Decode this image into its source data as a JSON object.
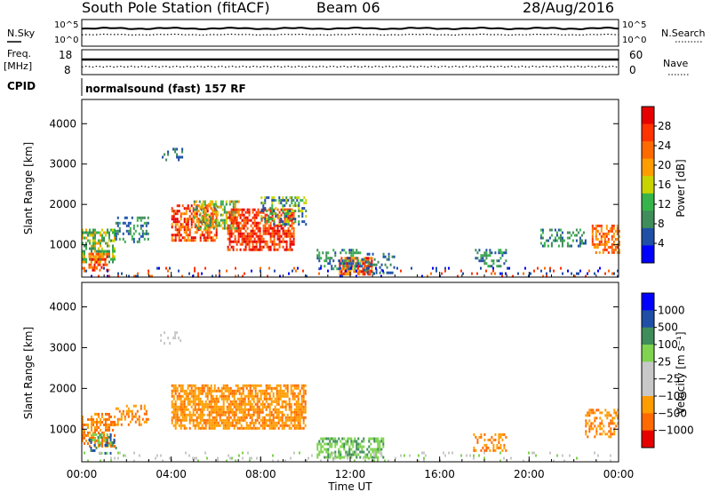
{
  "header": {
    "station": "South Pole Station (fitACF)",
    "beam": "Beam 06",
    "date": "28/Aug/2016"
  },
  "left_labels": {
    "nsky": "N.Sky",
    "freq": "Freq.",
    "freq_unit": "[MHz]",
    "cpid": "CPID"
  },
  "right_labels": {
    "nsearch": "N.Search",
    "nave": "Nave"
  },
  "noise_axis": {
    "top": "10^5",
    "bottom": "10^0"
  },
  "freq_axis": {
    "left_top": "18",
    "left_bottom": "8",
    "right_top": "60",
    "right_bottom": "0"
  },
  "cpid_text": "normalsound (fast) 157 RF",
  "colors": {
    "power_scale": [
      "#0000ff",
      "#1f4fa6",
      "#3f8d5a",
      "#36b34a",
      "#c8d400",
      "#ff9d00",
      "#ff6a00",
      "#ff3300",
      "#e60000"
    ],
    "velocity_scale": [
      "#0000ff",
      "#1f4fa6",
      "#3f8d5a",
      "#7fd34f",
      "#c8c8c8",
      "#c8c8c8",
      "#ff9d00",
      "#ff6a00",
      "#e60000"
    ]
  },
  "chart_data": [
    {
      "type": "heatmap",
      "name": "power",
      "ylabel": "Slant Range [km]",
      "yticks": [
        "1000",
        "2000",
        "3000",
        "4000"
      ],
      "ylim": [
        200,
        4600
      ],
      "xlim": [
        0,
        24
      ],
      "colorbar_label": "Power [dB]",
      "colorbar_ticks": [
        "4",
        "8",
        "12",
        "16",
        "20",
        "24",
        "28"
      ],
      "colorbar_range": [
        0,
        32
      ]
    },
    {
      "type": "heatmap",
      "name": "velocity",
      "ylabel": "Slant Range [km]",
      "yticks": [
        "1000",
        "2000",
        "3000",
        "4000"
      ],
      "ylim": [
        200,
        4600
      ],
      "xlim": [
        0,
        24
      ],
      "colorbar_label": "Velocity [m s⁻¹]",
      "colorbar_ticks": [
        "1000",
        "500",
        "100",
        "25",
        "−25",
        "−100",
        "−500",
        "−1000"
      ]
    }
  ],
  "x_axis": {
    "ticks": [
      "00:00",
      "04:00",
      "08:00",
      "12:00",
      "16:00",
      "20:00",
      "00:00"
    ],
    "label": "Time UT"
  }
}
